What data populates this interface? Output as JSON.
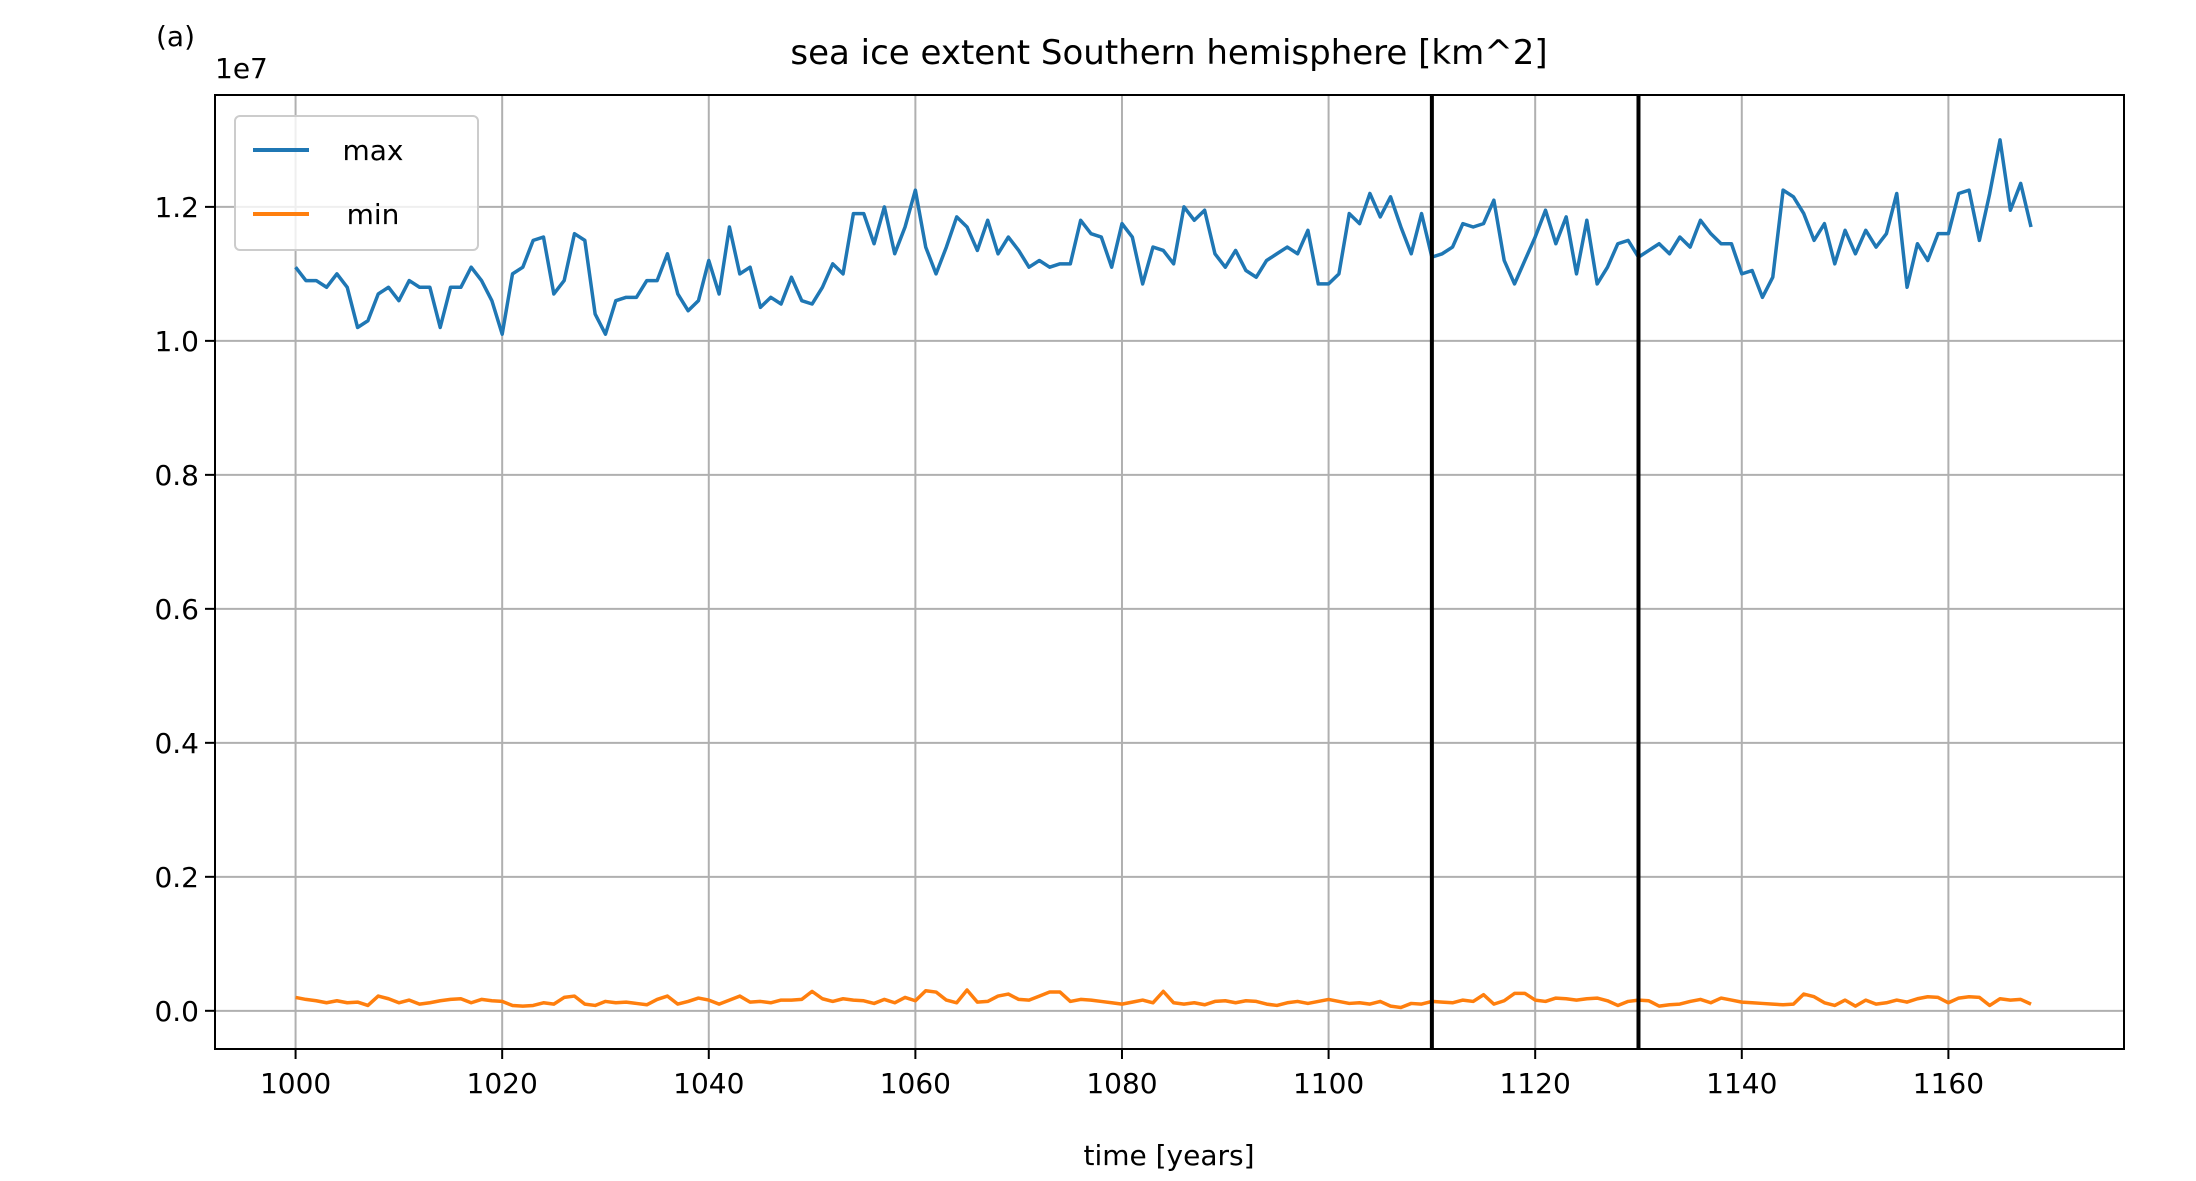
{
  "chart_data": {
    "type": "line",
    "panel_label": "(a)",
    "title": "sea ice extent Southern hemisphere [km^2]",
    "xlabel": "time [years]",
    "y_offset_label": "1e7",
    "x": [
      1000,
      1001,
      1002,
      1003,
      1004,
      1005,
      1006,
      1007,
      1008,
      1009,
      1010,
      1011,
      1012,
      1013,
      1014,
      1015,
      1016,
      1017,
      1018,
      1019,
      1020,
      1021,
      1022,
      1023,
      1024,
      1025,
      1026,
      1027,
      1028,
      1029,
      1030,
      1031,
      1032,
      1033,
      1034,
      1035,
      1036,
      1037,
      1038,
      1039,
      1040,
      1041,
      1042,
      1043,
      1044,
      1045,
      1046,
      1047,
      1048,
      1049,
      1050,
      1051,
      1052,
      1053,
      1054,
      1055,
      1056,
      1057,
      1058,
      1059,
      1060,
      1061,
      1062,
      1063,
      1064,
      1065,
      1066,
      1067,
      1068,
      1069,
      1070,
      1071,
      1072,
      1073,
      1074,
      1075,
      1076,
      1077,
      1078,
      1079,
      1080,
      1081,
      1082,
      1083,
      1084,
      1085,
      1086,
      1087,
      1088,
      1089,
      1090,
      1091,
      1092,
      1093,
      1094,
      1095,
      1096,
      1097,
      1098,
      1099,
      1100,
      1101,
      1102,
      1103,
      1104,
      1105,
      1106,
      1107,
      1108,
      1109,
      1110,
      1111,
      1112,
      1113,
      1114,
      1115,
      1116,
      1117,
      1118,
      1119,
      1120,
      1121,
      1122,
      1123,
      1124,
      1125,
      1126,
      1127,
      1128,
      1129,
      1130,
      1131,
      1132,
      1133,
      1134,
      1135,
      1136,
      1137,
      1138,
      1139,
      1140,
      1141,
      1142,
      1143,
      1144,
      1145,
      1146,
      1147,
      1148,
      1149,
      1150,
      1151,
      1152,
      1153,
      1154,
      1155,
      1156,
      1157,
      1158,
      1159,
      1160,
      1161,
      1162,
      1163,
      1164,
      1165,
      1166,
      1167,
      1168
    ],
    "series": [
      {
        "name": "max",
        "color": "#1f77b4",
        "values": [
          1.11,
          1.09,
          1.09,
          1.08,
          1.1,
          1.08,
          1.02,
          1.03,
          1.07,
          1.08,
          1.06,
          1.09,
          1.08,
          1.08,
          1.02,
          1.08,
          1.08,
          1.11,
          1.09,
          1.06,
          1.01,
          1.1,
          1.11,
          1.15,
          1.155,
          1.07,
          1.09,
          1.16,
          1.15,
          1.04,
          1.01,
          1.06,
          1.065,
          1.065,
          1.09,
          1.09,
          1.13,
          1.07,
          1.045,
          1.06,
          1.12,
          1.07,
          1.17,
          1.1,
          1.11,
          1.05,
          1.065,
          1.055,
          1.095,
          1.06,
          1.055,
          1.08,
          1.115,
          1.1,
          1.19,
          1.19,
          1.145,
          1.2,
          1.13,
          1.17,
          1.225,
          1.14,
          1.1,
          1.14,
          1.185,
          1.17,
          1.135,
          1.18,
          1.13,
          1.155,
          1.135,
          1.11,
          1.12,
          1.11,
          1.115,
          1.115,
          1.18,
          1.16,
          1.155,
          1.11,
          1.175,
          1.155,
          1.085,
          1.14,
          1.135,
          1.115,
          1.2,
          1.18,
          1.195,
          1.13,
          1.11,
          1.135,
          1.105,
          1.095,
          1.12,
          1.13,
          1.14,
          1.13,
          1.165,
          1.085,
          1.085,
          1.1,
          1.19,
          1.175,
          1.22,
          1.185,
          1.215,
          1.17,
          1.13,
          1.19,
          1.125,
          1.13,
          1.14,
          1.175,
          1.17,
          1.175,
          1.21,
          1.12,
          1.085,
          1.12,
          1.155,
          1.195,
          1.145,
          1.185,
          1.1,
          1.18,
          1.085,
          1.11,
          1.145,
          1.15,
          1.125,
          1.135,
          1.145,
          1.13,
          1.155,
          1.14,
          1.18,
          1.16,
          1.145,
          1.145,
          1.1,
          1.105,
          1.065,
          1.095,
          1.225,
          1.215,
          1.19,
          1.15,
          1.175,
          1.115,
          1.165,
          1.13,
          1.165,
          1.14,
          1.16,
          1.22,
          1.08,
          1.145,
          1.12,
          1.16,
          1.16,
          1.22,
          1.225,
          1.15,
          1.22,
          1.3,
          1.195,
          1.235,
          1.17
        ]
      },
      {
        "name": "min",
        "color": "#ff7f0e",
        "values": [
          0.02,
          0.017,
          0.015,
          0.012,
          0.015,
          0.012,
          0.013,
          0.008,
          0.022,
          0.018,
          0.012,
          0.016,
          0.01,
          0.012,
          0.015,
          0.017,
          0.018,
          0.012,
          0.017,
          0.015,
          0.014,
          0.008,
          0.007,
          0.008,
          0.012,
          0.01,
          0.02,
          0.022,
          0.01,
          0.008,
          0.014,
          0.012,
          0.013,
          0.011,
          0.009,
          0.017,
          0.022,
          0.01,
          0.014,
          0.019,
          0.016,
          0.01,
          0.016,
          0.022,
          0.013,
          0.014,
          0.012,
          0.016,
          0.016,
          0.017,
          0.029,
          0.018,
          0.014,
          0.018,
          0.016,
          0.015,
          0.011,
          0.017,
          0.012,
          0.02,
          0.015,
          0.03,
          0.028,
          0.016,
          0.012,
          0.031,
          0.013,
          0.014,
          0.022,
          0.025,
          0.017,
          0.016,
          0.022,
          0.028,
          0.028,
          0.014,
          0.017,
          0.016,
          0.014,
          0.012,
          0.01,
          0.013,
          0.016,
          0.012,
          0.029,
          0.012,
          0.01,
          0.012,
          0.009,
          0.014,
          0.015,
          0.012,
          0.015,
          0.014,
          0.01,
          0.008,
          0.012,
          0.014,
          0.011,
          0.014,
          0.017,
          0.014,
          0.011,
          0.012,
          0.01,
          0.014,
          0.007,
          0.005,
          0.011,
          0.01,
          0.014,
          0.013,
          0.012,
          0.016,
          0.014,
          0.024,
          0.01,
          0.015,
          0.026,
          0.026,
          0.016,
          0.014,
          0.019,
          0.018,
          0.016,
          0.018,
          0.019,
          0.015,
          0.008,
          0.014,
          0.016,
          0.015,
          0.007,
          0.009,
          0.01,
          0.014,
          0.017,
          0.012,
          0.019,
          0.016,
          0.013,
          0.012,
          0.011,
          0.01,
          0.009,
          0.01,
          0.025,
          0.021,
          0.012,
          0.008,
          0.016,
          0.007,
          0.016,
          0.01,
          0.012,
          0.016,
          0.013,
          0.018,
          0.021,
          0.02,
          0.012,
          0.019,
          0.021,
          0.02,
          0.008,
          0.018,
          0.016,
          0.017,
          0.01
        ]
      }
    ],
    "vlines": [
      1110,
      1130
    ],
    "vline_color": "#000000",
    "xlim": [
      992.2,
      1177
    ],
    "ylim": [
      -0.057,
      1.367
    ],
    "xticks": [
      1000,
      1020,
      1040,
      1060,
      1080,
      1100,
      1120,
      1140,
      1160
    ],
    "yticks": [
      {
        "value": 0,
        "label": "0.0"
      },
      0.2,
      0.4,
      0.6,
      0.8,
      {
        "value": 1,
        "label": "1.0"
      },
      1.2
    ],
    "grid": true,
    "legend": "upper left"
  }
}
